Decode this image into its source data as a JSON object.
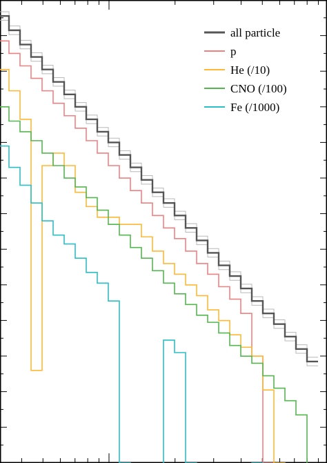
{
  "chart_data": {
    "type": "line",
    "step": true,
    "x": [
      1,
      2,
      3,
      4,
      5,
      6,
      7,
      8,
      9,
      10,
      11,
      12,
      13,
      14,
      15,
      16,
      17,
      18,
      19,
      20,
      21,
      22,
      23,
      24,
      25,
      26,
      27,
      28,
      29
    ],
    "ylim": [
      0,
      13
    ],
    "log_x_ticks": true,
    "grid": false,
    "legend_position": "top-right",
    "series": [
      {
        "name": "all particle",
        "color": "#555555",
        "values": [
          12.55,
          12.15,
          11.75,
          11.4,
          11.05,
          10.7,
          10.35,
          10.0,
          9.65,
          9.3,
          9.0,
          8.65,
          8.3,
          7.95,
          7.6,
          7.3,
          6.95,
          6.6,
          6.25,
          5.9,
          5.55,
          5.25,
          4.9,
          4.55,
          4.2,
          3.9,
          3.55,
          3.2,
          2.85
        ],
        "band": true
      },
      {
        "name": "p",
        "color": "#f08080",
        "values": [
          11.85,
          11.5,
          11.15,
          10.8,
          10.45,
          10.1,
          9.75,
          9.4,
          9.05,
          8.7,
          8.35,
          8.0,
          7.65,
          7.3,
          6.95,
          6.6,
          6.3,
          5.95,
          5.6,
          5.3,
          4.95,
          4.6,
          4.2,
          3.0,
          0.0,
          -0.5,
          -0.5,
          -0.5,
          -0.5
        ]
      },
      {
        "name": "He (/10)",
        "color": "#ffb833",
        "values": [
          11.05,
          10.45,
          9.65,
          2.6,
          8.35,
          8.7,
          8.35,
          7.6,
          7.2,
          6.9,
          6.9,
          6.7,
          6.7,
          6.35,
          5.95,
          5.6,
          5.3,
          5.0,
          4.7,
          4.3,
          4.0,
          3.6,
          3.25,
          3.0,
          2.05,
          0.0,
          -0.5,
          -0.5,
          -0.5
        ]
      },
      {
        "name": "CNO (/100)",
        "color": "#52b84d",
        "values": [
          10.0,
          9.6,
          9.3,
          9.05,
          8.7,
          8.35,
          8.0,
          7.75,
          7.45,
          7.1,
          6.7,
          6.4,
          6.05,
          5.75,
          5.4,
          5.05,
          4.75,
          4.45,
          4.15,
          3.95,
          3.65,
          3.3,
          3.0,
          2.8,
          2.45,
          2.1,
          1.75,
          1.35,
          -0.5
        ]
      },
      {
        "name": "Fe (/1000)",
        "color": "#29bfc9",
        "values": [
          8.9,
          8.3,
          7.8,
          7.3,
          6.8,
          6.4,
          6.15,
          5.75,
          5.35,
          5.05,
          4.55,
          0.0,
          -0.5,
          -0.5,
          -0.5,
          3.45,
          3.1,
          0.0,
          -0.5,
          -0.5,
          -0.5,
          -0.5,
          -0.5,
          0.0,
          -0.5,
          -0.5,
          -0.5,
          -0.5,
          -0.5
        ]
      }
    ]
  }
}
